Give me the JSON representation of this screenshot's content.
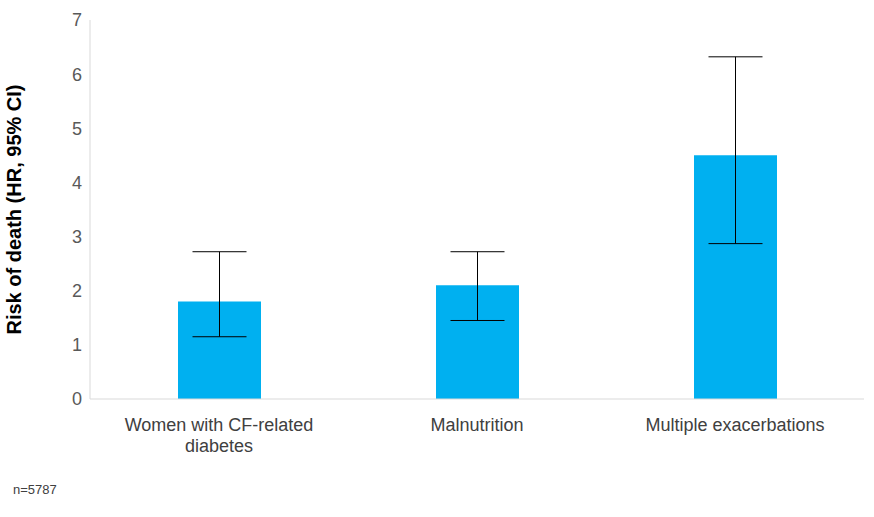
{
  "chart_data": {
    "type": "bar",
    "categories": [
      "Women with CF-related diabetes",
      "Malnutrition",
      "Multiple exacerbations"
    ],
    "values": [
      1.8,
      2.1,
      4.5
    ],
    "ci_low": [
      1.15,
      1.45,
      2.87
    ],
    "ci_high": [
      2.72,
      2.72,
      6.32
    ],
    "color": "#00b0f0",
    "ylabel": "Risk of death (HR, 95% CI)",
    "annotation": "n=5787",
    "ylim": [
      0,
      7
    ],
    "yticks": [
      0,
      1,
      2,
      3,
      4,
      5,
      6,
      7
    ],
    "grid": false
  }
}
